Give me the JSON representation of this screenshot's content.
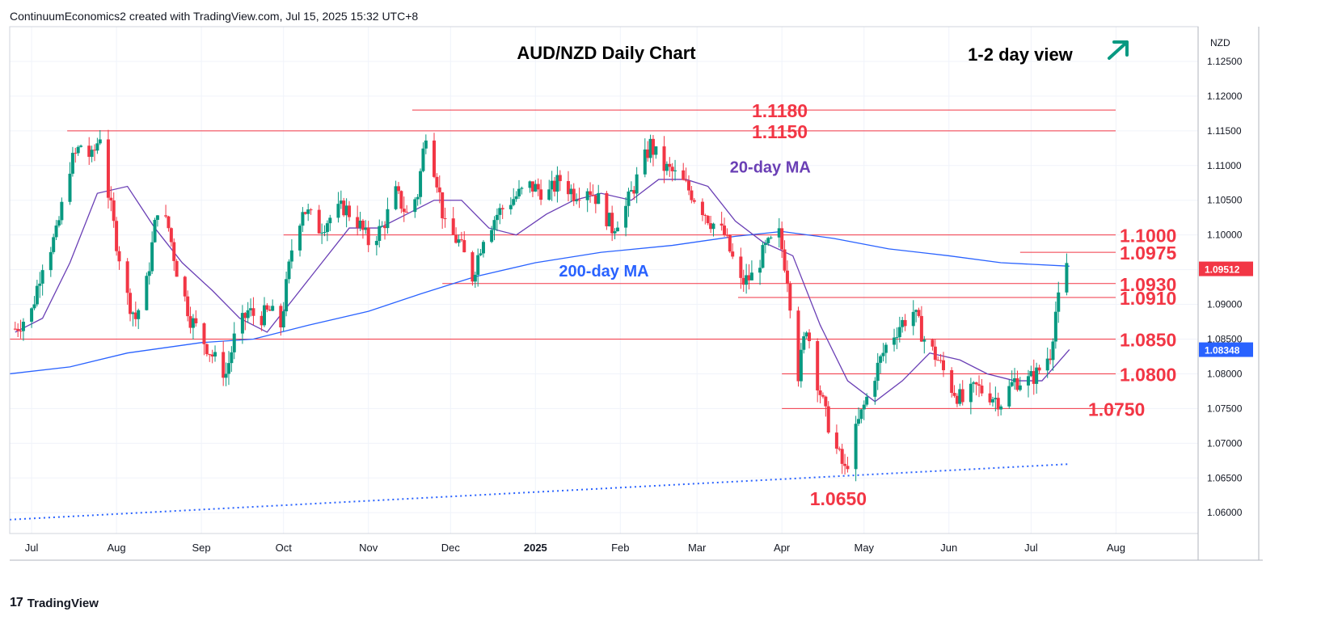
{
  "header": {
    "credit": "ContinuumEconomics2 created with TradingView.com, Jul 15, 2025 15:32 UTC+8"
  },
  "footer": {
    "brand": "TradingView",
    "logo_text": "17"
  },
  "colors": {
    "up": "#089981",
    "down": "#f23645",
    "level_line": "#f23645",
    "ma20": "#6a3fb5",
    "ma200": "#2962ff",
    "trendline": "#2962ff",
    "view_arrow": "#089981"
  },
  "chart_data": {
    "type": "candlestick",
    "title": "AUD/NZD Daily Chart",
    "view_label": "1-2 day view",
    "view_direction": "up",
    "currency": "NZD",
    "last_price": "1.09512",
    "ma20_last": "1.08348",
    "ylim": [
      1.057,
      1.13
    ],
    "y_ticks": [
      "1.12500",
      "1.12000",
      "1.11500",
      "1.11000",
      "1.10500",
      "1.10000",
      "1.09500",
      "1.09000",
      "1.08500",
      "1.08000",
      "1.07500",
      "1.07000",
      "1.06500",
      "1.06000"
    ],
    "x_ticks": [
      {
        "label": "Jul",
        "date": "2024-07-01"
      },
      {
        "label": "Aug",
        "date": "2024-08-01"
      },
      {
        "label": "Sep",
        "date": "2024-09-01"
      },
      {
        "label": "Oct",
        "date": "2024-10-01"
      },
      {
        "label": "Nov",
        "date": "2024-11-01"
      },
      {
        "label": "Dec",
        "date": "2024-12-01"
      },
      {
        "label": "2025",
        "date": "2025-01-01",
        "bold": true
      },
      {
        "label": "Feb",
        "date": "2025-02-01"
      },
      {
        "label": "Mar",
        "date": "2025-03-01"
      },
      {
        "label": "Apr",
        "date": "2025-04-01"
      },
      {
        "label": "May",
        "date": "2025-05-01"
      },
      {
        "label": "Jun",
        "date": "2025-06-01"
      },
      {
        "label": "Jul",
        "date": "2025-07-01"
      },
      {
        "label": "Aug",
        "date": "2025-08-01"
      }
    ],
    "x_range": [
      "2024-06-23",
      "2025-08-31"
    ],
    "levels": [
      {
        "label": "1.1180",
        "value": 1.118,
        "from": "2024-11-17"
      },
      {
        "label": "1.1150",
        "value": 1.115,
        "from": "2024-07-14"
      },
      {
        "label": "1.1000",
        "value": 1.1,
        "from": "2024-10-01"
      },
      {
        "label": "1.0975",
        "value": 1.0975,
        "from": "2025-06-27"
      },
      {
        "label": "1.0930",
        "value": 1.093,
        "from": "2024-11-28"
      },
      {
        "label": "1.0910",
        "value": 1.091,
        "from": "2025-03-16"
      },
      {
        "label": "1.0850",
        "value": 1.085,
        "from": "2024-06-23"
      },
      {
        "label": "1.0800",
        "value": 1.08,
        "from": "2025-04-01"
      },
      {
        "label": "1.0750",
        "value": 1.075,
        "from": "2025-04-01"
      },
      {
        "label": "1.0650",
        "value": null,
        "at": "2025-04-21"
      }
    ],
    "annotations": [
      {
        "text": "20-day MA",
        "date": "2025-03-13",
        "y": 1.109
      },
      {
        "text": "200-day MA",
        "date": "2025-01-26",
        "y": 1.094
      }
    ],
    "price_path": [
      [
        "2024-06-25",
        1.0865
      ],
      [
        "2024-07-01",
        1.089
      ],
      [
        "2024-07-05",
        1.096
      ],
      [
        "2024-07-10",
        1.1
      ],
      [
        "2024-07-15",
        1.11
      ],
      [
        "2024-07-19",
        1.113
      ],
      [
        "2024-07-23",
        1.111
      ],
      [
        "2024-07-26",
        1.1145
      ],
      [
        "2024-07-29",
        1.106
      ],
      [
        "2024-08-01",
        1.099
      ],
      [
        "2024-08-05",
        1.091
      ],
      [
        "2024-08-08",
        1.088
      ],
      [
        "2024-08-12",
        1.093
      ],
      [
        "2024-08-16",
        1.104
      ],
      [
        "2024-08-20",
        1.101
      ],
      [
        "2024-08-23",
        1.095
      ],
      [
        "2024-08-28",
        1.088
      ],
      [
        "2024-09-03",
        1.084
      ],
      [
        "2024-09-06",
        1.082
      ],
      [
        "2024-09-10",
        1.08
      ],
      [
        "2024-09-13",
        1.085
      ],
      [
        "2024-09-18",
        1.089
      ],
      [
        "2024-09-22",
        1.088
      ],
      [
        "2024-09-26",
        1.089
      ],
      [
        "2024-09-30",
        1.087
      ],
      [
        "2024-10-04",
        1.098
      ],
      [
        "2024-10-08",
        1.104
      ],
      [
        "2024-10-14",
        1.101
      ],
      [
        "2024-10-18",
        1.1025
      ],
      [
        "2024-10-23",
        1.104
      ],
      [
        "2024-10-28",
        1.102
      ],
      [
        "2024-11-01",
        1.099
      ],
      [
        "2024-11-06",
        1.101
      ],
      [
        "2024-11-11",
        1.106
      ],
      [
        "2024-11-15",
        1.103
      ],
      [
        "2024-11-19",
        1.106
      ],
      [
        "2024-11-22",
        1.115
      ],
      [
        "2024-11-26",
        1.108
      ],
      [
        "2024-11-29",
        1.101
      ],
      [
        "2024-12-04",
        1.099
      ],
      [
        "2024-12-09",
        1.094
      ],
      [
        "2024-12-13",
        1.1
      ],
      [
        "2024-12-18",
        1.103
      ],
      [
        "2024-12-23",
        1.105
      ],
      [
        "2024-12-30",
        1.107
      ],
      [
        "2025-01-06",
        1.106
      ],
      [
        "2025-01-10",
        1.108
      ],
      [
        "2025-01-15",
        1.106
      ],
      [
        "2025-01-20",
        1.107
      ],
      [
        "2025-01-24",
        1.105
      ],
      [
        "2025-01-29",
        1.101
      ],
      [
        "2025-02-03",
        1.104
      ],
      [
        "2025-02-07",
        1.108
      ],
      [
        "2025-02-12",
        1.113
      ],
      [
        "2025-02-16",
        1.11
      ],
      [
        "2025-02-20",
        1.109
      ],
      [
        "2025-02-25",
        1.107
      ],
      [
        "2025-03-01",
        1.105
      ],
      [
        "2025-03-06",
        1.102
      ],
      [
        "2025-03-11",
        1.1
      ],
      [
        "2025-03-17",
        1.093
      ],
      [
        "2025-03-21",
        1.094
      ],
      [
        "2025-03-26",
        1.098
      ],
      [
        "2025-03-31",
        1.1
      ],
      [
        "2025-04-03",
        1.094
      ],
      [
        "2025-04-07",
        1.08
      ],
      [
        "2025-04-10",
        1.087
      ],
      [
        "2025-04-14",
        1.079
      ],
      [
        "2025-04-17",
        1.074
      ],
      [
        "2025-04-21",
        1.069
      ],
      [
        "2025-04-24",
        1.066
      ],
      [
        "2025-04-29",
        1.073
      ],
      [
        "2025-05-05",
        1.08
      ],
      [
        "2025-05-09",
        1.084
      ],
      [
        "2025-05-14",
        1.087
      ],
      [
        "2025-05-19",
        1.089
      ],
      [
        "2025-05-23",
        1.085
      ],
      [
        "2025-05-28",
        1.082
      ],
      [
        "2025-06-02",
        1.078
      ],
      [
        "2025-06-06",
        1.076
      ],
      [
        "2025-06-11",
        1.078
      ],
      [
        "2025-06-16",
        1.077
      ],
      [
        "2025-06-20",
        1.076
      ],
      [
        "2025-06-25",
        1.079
      ],
      [
        "2025-06-30",
        1.079
      ],
      [
        "2025-07-03",
        1.08
      ],
      [
        "2025-07-08",
        1.083
      ],
      [
        "2025-07-10",
        1.089
      ],
      [
        "2025-07-12",
        1.092
      ],
      [
        "2025-07-14",
        1.0951
      ]
    ],
    "ma20_path": [
      [
        "2024-06-25",
        1.086
      ],
      [
        "2024-07-05",
        1.088
      ],
      [
        "2024-07-15",
        1.096
      ],
      [
        "2024-07-25",
        1.106
      ],
      [
        "2024-08-05",
        1.107
      ],
      [
        "2024-08-15",
        1.101
      ],
      [
        "2024-08-25",
        1.096
      ],
      [
        "2024-09-05",
        1.092
      ],
      [
        "2024-09-15",
        1.088
      ],
      [
        "2024-09-25",
        1.086
      ],
      [
        "2024-10-05",
        1.091
      ],
      [
        "2024-10-15",
        1.096
      ],
      [
        "2024-10-25",
        1.101
      ],
      [
        "2024-11-05",
        1.101
      ],
      [
        "2024-11-15",
        1.103
      ],
      [
        "2024-11-25",
        1.105
      ],
      [
        "2024-12-05",
        1.105
      ],
      [
        "2024-12-15",
        1.101
      ],
      [
        "2024-12-25",
        1.1
      ],
      [
        "2025-01-05",
        1.103
      ],
      [
        "2025-01-15",
        1.105
      ],
      [
        "2025-01-25",
        1.106
      ],
      [
        "2025-02-05",
        1.105
      ],
      [
        "2025-02-15",
        1.108
      ],
      [
        "2025-02-25",
        1.108
      ],
      [
        "2025-03-05",
        1.107
      ],
      [
        "2025-03-15",
        1.102
      ],
      [
        "2025-03-25",
        1.099
      ],
      [
        "2025-04-05",
        1.097
      ],
      [
        "2025-04-15",
        1.087
      ],
      [
        "2025-04-25",
        1.079
      ],
      [
        "2025-05-05",
        1.076
      ],
      [
        "2025-05-15",
        1.079
      ],
      [
        "2025-05-25",
        1.083
      ],
      [
        "2025-06-05",
        1.082
      ],
      [
        "2025-06-15",
        1.08
      ],
      [
        "2025-06-25",
        1.079
      ],
      [
        "2025-07-05",
        1.079
      ],
      [
        "2025-07-15",
        1.0835
      ]
    ],
    "ma200_path": [
      [
        "2024-06-23",
        1.08
      ],
      [
        "2024-07-15",
        1.081
      ],
      [
        "2024-08-05",
        1.083
      ],
      [
        "2024-09-01",
        1.0845
      ],
      [
        "2024-09-20",
        1.085
      ],
      [
        "2024-10-10",
        1.087
      ],
      [
        "2024-11-01",
        1.089
      ],
      [
        "2024-11-20",
        1.0915
      ],
      [
        "2024-12-10",
        1.094
      ],
      [
        "2025-01-01",
        1.096
      ],
      [
        "2025-01-25",
        1.0975
      ],
      [
        "2025-02-20",
        1.0985
      ],
      [
        "2025-03-15",
        1.0998
      ],
      [
        "2025-04-01",
        1.1005
      ],
      [
        "2025-04-20",
        1.0995
      ],
      [
        "2025-05-10",
        1.098
      ],
      [
        "2025-06-01",
        1.097
      ],
      [
        "2025-06-20",
        1.096
      ],
      [
        "2025-07-15",
        1.0955
      ]
    ],
    "trendline": {
      "from": [
        "2024-06-23",
        1.059
      ],
      "to": [
        "2025-07-15",
        1.067
      ]
    }
  }
}
